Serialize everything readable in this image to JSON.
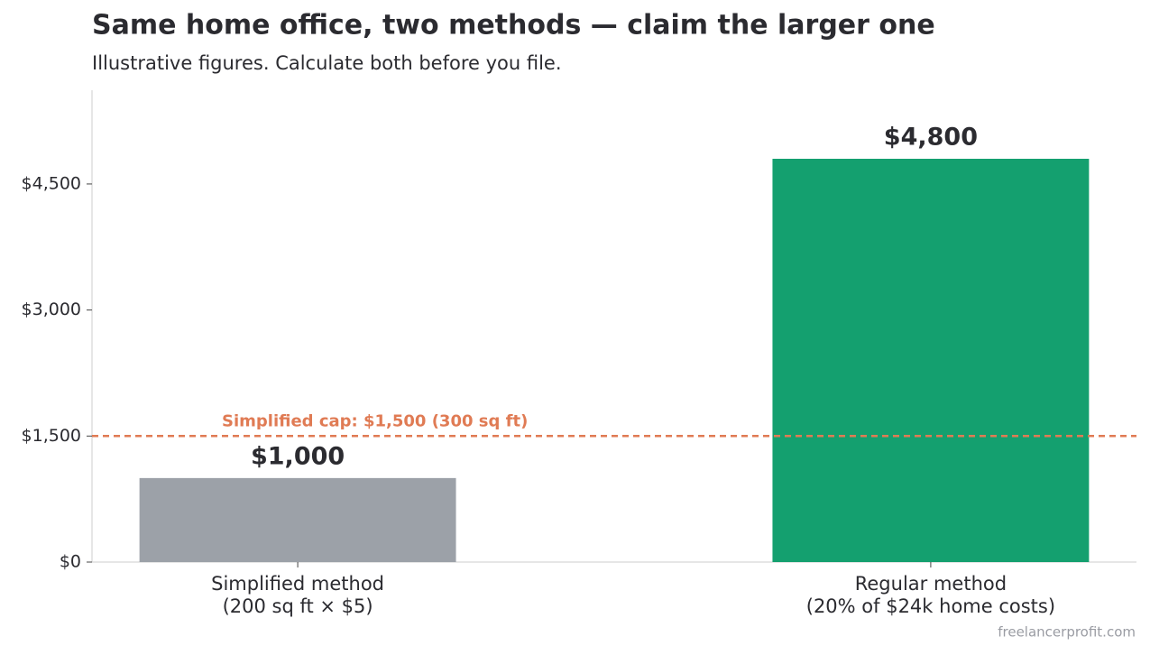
{
  "chart_data": {
    "type": "bar",
    "title": "Same home office, two methods — claim the larger one",
    "subtitle": "Illustrative figures. Calculate both before you file.",
    "categories": [
      "Simplified method\n(200 sq ft × $5)",
      "Regular method\n(20% of $24k home costs)"
    ],
    "values": [
      1000,
      4800
    ],
    "value_labels": [
      "$1,000",
      "$4,800"
    ],
    "colors": [
      "#9ca1a8",
      "#14a06f"
    ],
    "ylim": [
      0,
      5616
    ],
    "yticks": [
      {
        "value": 0,
        "label": "$0"
      },
      {
        "value": 1500,
        "label": "$1,500"
      },
      {
        "value": 3000,
        "label": "$3,000"
      },
      {
        "value": 4500,
        "label": "$4,500"
      }
    ],
    "grid": false,
    "reference_line": {
      "value": 1500,
      "label": "Simplified cap: $1,500 (300 sq ft)",
      "color": "#e07b54"
    },
    "source": "freelancerprofit.com"
  }
}
